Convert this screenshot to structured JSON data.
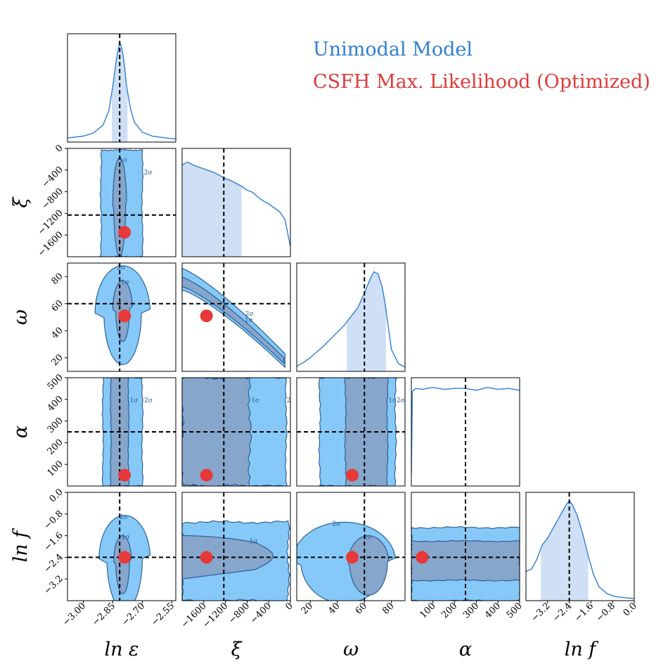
{
  "legend": {
    "entries": [
      {
        "label": "Unimodal Model",
        "color": "#2f7fd0"
      },
      {
        "label": "CSFH Max. Likelihood (Optimized)",
        "color": "#e03a3a"
      }
    ]
  },
  "colors": {
    "posterior_line": "#2f7fd0",
    "posterior_fill": "#cfe0f6",
    "contour_2sigma": "#86c9f8",
    "contour_1sigma": "#87a6cb",
    "contour_edge": "#22578f",
    "point": "#e63a3a",
    "truth_line": "#000000"
  },
  "chart_data": {
    "type": "corner",
    "parameters": [
      {
        "key": "ln_eps",
        "label": "ln ε",
        "range": [
          -3.08,
          -2.53
        ],
        "ticks": [
          -3.0,
          -2.85,
          -2.7,
          -2.55
        ],
        "tick_labels": [
          "−3.00",
          "−2.85",
          "−2.70",
          "−2.55"
        ],
        "truth": -2.815,
        "point": -2.79
      },
      {
        "key": "xi",
        "label": "ξ",
        "range": [
          -2000,
          0
        ],
        "ticks": [
          -1600,
          -1200,
          -800,
          -400,
          0
        ],
        "tick_labels": [
          "−1600",
          "−1200",
          "−800",
          "−400",
          "0"
        ],
        "truth": -1230,
        "point": -1550
      },
      {
        "key": "omega",
        "label": "ω",
        "range": [
          10,
          90
        ],
        "ticks": [
          20,
          40,
          60,
          80
        ],
        "tick_labels": [
          "20",
          "40",
          "60",
          "80"
        ],
        "truth": 60,
        "point": 51
      },
      {
        "key": "alpha",
        "label": "α",
        "range": [
          0,
          500
        ],
        "ticks": [
          100,
          200,
          300,
          400,
          500
        ],
        "tick_labels": [
          "100",
          "200",
          "300",
          "400",
          "500"
        ],
        "truth": 250,
        "point": 50
      },
      {
        "key": "ln_f",
        "label": "ln f",
        "range": [
          -4.0,
          0.0
        ],
        "ticks": [
          -3.2,
          -2.4,
          -1.6,
          -0.8,
          0.0
        ],
        "tick_labels": [
          "−3.2",
          "−2.4",
          "−1.6",
          "−0.8",
          "0.0"
        ],
        "truth": -2.4,
        "point": -2.4
      }
    ],
    "sigma_labels": [
      "1σ",
      "2σ"
    ],
    "marginals": {
      "ln_eps": {
        "x": [
          -3.08,
          -3.0,
          -2.95,
          -2.9,
          -2.87,
          -2.85,
          -2.84,
          -2.83,
          -2.82,
          -2.815,
          -2.81,
          -2.8,
          -2.79,
          -2.78,
          -2.76,
          -2.74,
          -2.7,
          -2.65,
          -2.58,
          -2.53
        ],
        "y": [
          0.02,
          0.04,
          0.07,
          0.15,
          0.3,
          0.55,
          0.7,
          0.85,
          0.95,
          1.0,
          0.98,
          0.9,
          0.75,
          0.55,
          0.32,
          0.18,
          0.08,
          0.04,
          0.02,
          0.01
        ],
        "interval": [
          -2.855,
          -2.775
        ]
      },
      "xi": {
        "x": [
          -2000,
          -1900,
          -1800,
          -1700,
          -1600,
          -1500,
          -1400,
          -1300,
          -1200,
          -1100,
          -1000,
          -900,
          -800,
          -700,
          -600,
          -500,
          -400,
          -300,
          -200,
          -100,
          0
        ],
        "y": [
          0.92,
          0.95,
          0.92,
          0.9,
          0.88,
          0.86,
          0.84,
          0.81,
          0.78,
          0.76,
          0.73,
          0.7,
          0.66,
          0.64,
          0.59,
          0.55,
          0.52,
          0.48,
          0.44,
          0.36,
          0.08
        ],
        "interval": [
          -2000,
          -900
        ]
      },
      "omega": {
        "x": [
          10,
          15,
          20,
          25,
          30,
          35,
          40,
          45,
          50,
          55,
          60,
          62,
          65,
          67,
          70,
          73,
          75,
          78,
          80,
          85,
          90
        ],
        "y": [
          0.03,
          0.07,
          0.12,
          0.18,
          0.24,
          0.31,
          0.38,
          0.45,
          0.54,
          0.63,
          0.78,
          0.85,
          0.95,
          1.0,
          0.98,
          0.85,
          0.7,
          0.4,
          0.2,
          0.06,
          0.02
        ],
        "interval": [
          47,
          76
        ]
      },
      "alpha": {
        "x": [
          0,
          5,
          20,
          50,
          100,
          150,
          200,
          250,
          300,
          350,
          400,
          450,
          500
        ],
        "y": [
          0.1,
          0.95,
          0.98,
          0.97,
          0.99,
          0.97,
          0.98,
          0.98,
          0.96,
          0.99,
          0.97,
          0.98,
          0.96
        ]
      },
      "ln_f": {
        "x": [
          -4.0,
          -3.8,
          -3.6,
          -3.4,
          -3.2,
          -3.0,
          -2.8,
          -2.6,
          -2.5,
          -2.4,
          -2.3,
          -2.1,
          -1.9,
          -1.7,
          -1.5,
          -1.3,
          -1.0,
          -0.7,
          -0.4,
          0.0
        ],
        "y": [
          0.28,
          0.3,
          0.4,
          0.55,
          0.62,
          0.72,
          0.82,
          0.92,
          0.97,
          1.0,
          0.97,
          0.85,
          0.66,
          0.44,
          0.24,
          0.12,
          0.05,
          0.02,
          0.01,
          0.0
        ],
        "interval": [
          -3.45,
          -1.7
        ]
      }
    }
  }
}
